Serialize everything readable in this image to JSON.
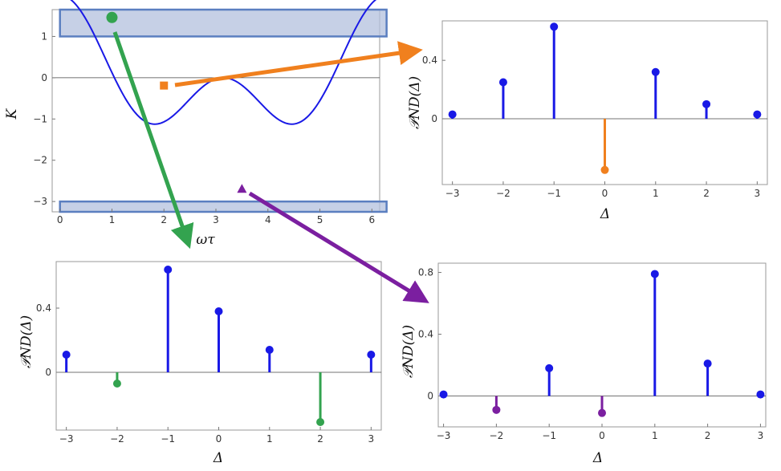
{
  "colors": {
    "blue": "#1919e6",
    "green": "#33a34f",
    "orange": "#f0801e",
    "purple": "#7b1fa0",
    "band_fill": "#b3c0dd",
    "band_edge": "#5b7fc0",
    "frame": "#999999"
  },
  "chart_data": [
    {
      "id": "main",
      "type": "line",
      "xlabel": "ωτ",
      "ylabel": "K",
      "xlim": [
        -0.15,
        6.15
      ],
      "ylim": [
        -3.25,
        1.65
      ],
      "xticks": [
        "0",
        "1",
        "2",
        "3",
        "4",
        "5",
        "6"
      ],
      "yticks": [
        "1",
        "0",
        "−1",
        "−2",
        "−3"
      ],
      "series": [
        {
          "function": "cos(x)+cos(2x)",
          "x_range": [
            0,
            6.2832
          ],
          "color": "blue"
        }
      ],
      "bands": [
        [
          1,
          1.65
        ],
        [
          -3.25,
          -3
        ]
      ],
      "markers": [
        {
          "shape": "circle",
          "x": 1.0,
          "y": 1.46,
          "color": "green"
        },
        {
          "shape": "square",
          "x": 2.0,
          "y": -0.19,
          "color": "orange"
        },
        {
          "shape": "triangle",
          "x": 3.5,
          "y": -2.69,
          "color": "purple"
        }
      ]
    },
    {
      "id": "orange_panel",
      "type": "stem",
      "xlabel": "Δ",
      "ylabel": "𝒫ND(Δ)",
      "xlim": [
        -3.2,
        3.2
      ],
      "ylim": [
        -0.45,
        0.67
      ],
      "xticks": [
        "−3",
        "−2",
        "−1",
        "0",
        "1",
        "2",
        "3"
      ],
      "yticks": [
        "0.4",
        "0"
      ],
      "x": [
        -3,
        -2,
        -1,
        0,
        1,
        2,
        3
      ],
      "values": [
        0.03,
        0.25,
        0.63,
        -0.35,
        0.32,
        0.1,
        0.03
      ],
      "colors": [
        "blue",
        "blue",
        "blue",
        "orange",
        "blue",
        "blue",
        "blue"
      ]
    },
    {
      "id": "green_panel",
      "type": "stem",
      "xlabel": "Δ",
      "ylabel": "𝒫ND(Δ)",
      "xlim": [
        -3.2,
        3.2
      ],
      "ylim": [
        -0.36,
        0.69
      ],
      "xticks": [
        "−3",
        "−2",
        "−1",
        "0",
        "1",
        "2",
        "3"
      ],
      "yticks": [
        "0.4",
        "0"
      ],
      "x": [
        -3,
        -2,
        -1,
        0,
        1,
        2,
        3
      ],
      "values": [
        0.11,
        -0.07,
        0.64,
        0.38,
        0.14,
        -0.31,
        0.11
      ],
      "colors": [
        "blue",
        "green",
        "blue",
        "blue",
        "blue",
        "green",
        "blue"
      ]
    },
    {
      "id": "purple_panel",
      "type": "stem",
      "xlabel": "Δ",
      "ylabel": "𝒫ND(Δ)",
      "xlim": [
        -3.1,
        3.1
      ],
      "ylim": [
        -0.2,
        0.86
      ],
      "xticks": [
        "−3",
        "−2",
        "−1",
        "0",
        "1",
        "2",
        "3"
      ],
      "yticks": [
        "0.8",
        "0.4",
        "0"
      ],
      "x": [
        -3,
        -2,
        -1,
        0,
        1,
        2,
        3
      ],
      "values": [
        0.01,
        -0.09,
        0.18,
        -0.11,
        0.79,
        0.21,
        0.01
      ],
      "colors": [
        "blue",
        "purple",
        "blue",
        "purple",
        "blue",
        "blue",
        "blue"
      ]
    }
  ]
}
